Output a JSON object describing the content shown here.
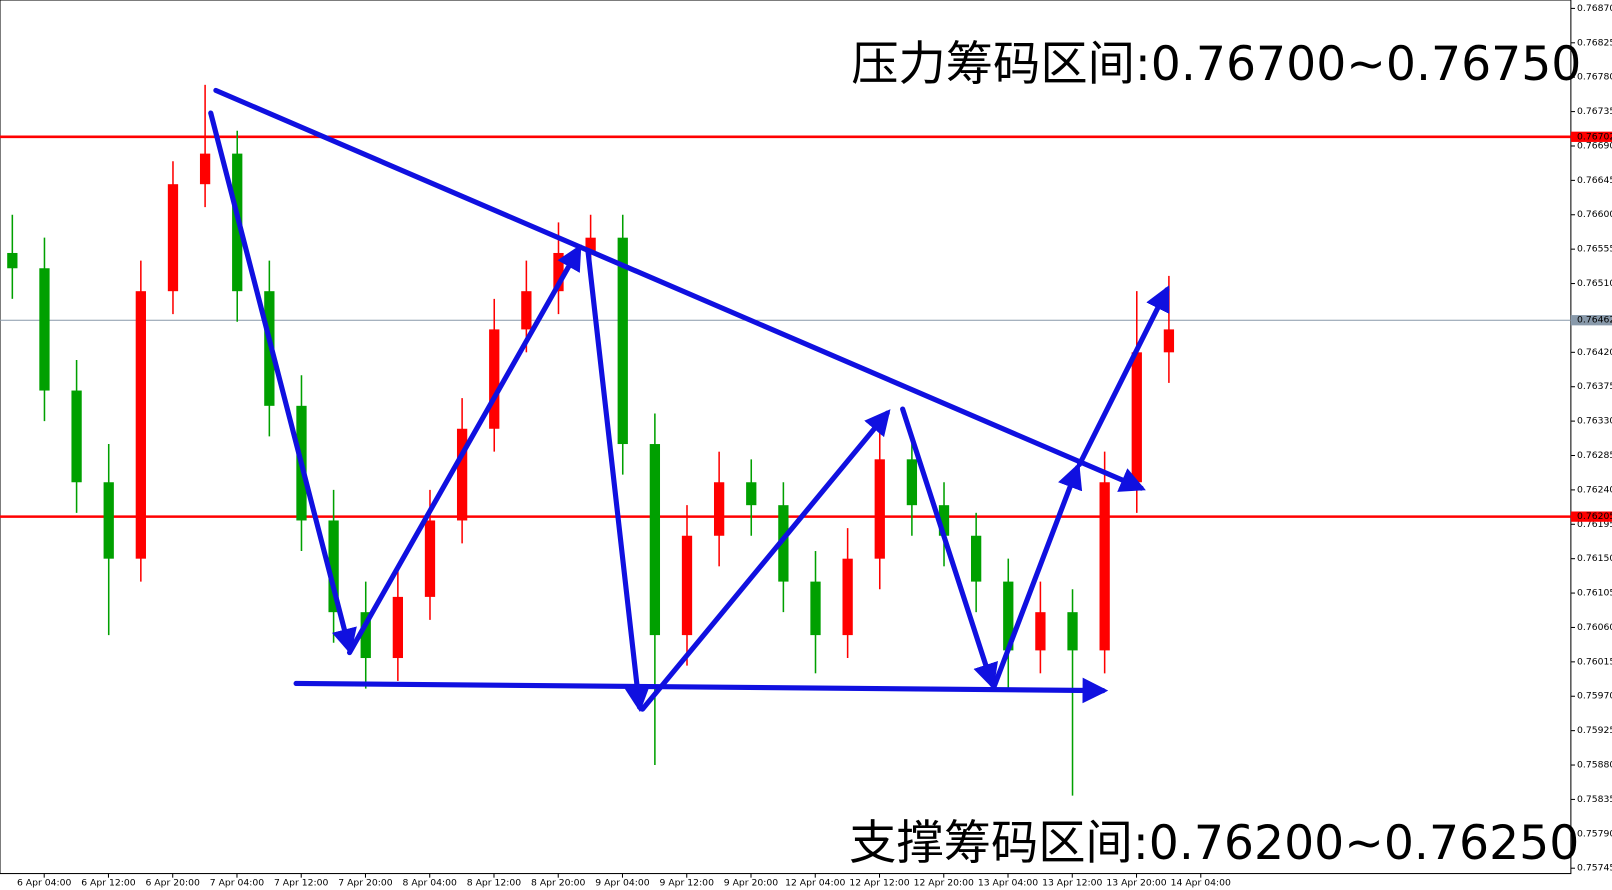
{
  "chart_data": {
    "type": "candlestick",
    "annotations": [
      "压力筹码区间:0.76700~0.76750",
      "支撑筹码区间:0.76200~0.76250"
    ],
    "xticks": [
      "6 Apr 04:00",
      "6 Apr 12:00",
      "6 Apr 20:00",
      "7 Apr 04:00",
      "7 Apr 12:00",
      "7 Apr 20:00",
      "8 Apr 04:00",
      "8 Apr 12:00",
      "8 Apr 20:00",
      "9 Apr 04:00",
      "9 Apr 12:00",
      "9 Apr 20:00",
      "12 Apr 04:00",
      "12 Apr 12:00",
      "12 Apr 20:00",
      "13 Apr 04:00",
      "13 Apr 12:00",
      "13 Apr 20:00",
      "14 Apr 04:00"
    ],
    "open": [
      0.7655,
      0.7653,
      0.7637,
      0.7625,
      0.7615,
      0.765,
      0.7664,
      0.7668,
      0.765,
      0.7635,
      0.762,
      0.7608,
      0.7602,
      0.761,
      0.762,
      0.7632,
      0.7645,
      0.765,
      0.7655,
      0.7657,
      0.763,
      0.7605,
      0.7618,
      0.7625,
      0.7622,
      0.7612,
      0.7605,
      0.7615,
      0.7628,
      0.7622,
      0.7618,
      0.7612,
      0.7603,
      0.7608,
      0.7603,
      0.7625,
      0.7642
    ],
    "high": [
      0.766,
      0.7657,
      0.7641,
      0.763,
      0.7654,
      0.7667,
      0.7677,
      0.7671,
      0.7654,
      0.7639,
      0.7624,
      0.7612,
      0.7614,
      0.7624,
      0.7636,
      0.7649,
      0.7654,
      0.7659,
      0.766,
      0.766,
      0.7634,
      0.7622,
      0.7629,
      0.7628,
      0.7625,
      0.7616,
      0.7619,
      0.7632,
      0.7631,
      0.7625,
      0.7621,
      0.7615,
      0.7612,
      0.7611,
      0.7629,
      0.765,
      0.7652
    ],
    "low": [
      0.7649,
      0.7633,
      0.7621,
      0.7605,
      0.7612,
      0.7647,
      0.7661,
      0.7646,
      0.7631,
      0.7616,
      0.7604,
      0.7598,
      0.7599,
      0.7607,
      0.7617,
      0.7629,
      0.7642,
      0.7647,
      0.7652,
      0.7626,
      0.7588,
      0.7601,
      0.7614,
      0.7618,
      0.7608,
      0.76,
      0.7602,
      0.7611,
      0.7618,
      0.7614,
      0.7608,
      0.7598,
      0.76,
      0.7584,
      0.76,
      0.7621,
      0.7638
    ],
    "close": [
      0.7653,
      0.7637,
      0.7625,
      0.7615,
      0.765,
      0.7664,
      0.7668,
      0.765,
      0.7635,
      0.762,
      0.7608,
      0.7602,
      0.761,
      0.762,
      0.7632,
      0.7645,
      0.765,
      0.7655,
      0.7657,
      0.763,
      0.7605,
      0.7618,
      0.7625,
      0.7622,
      0.7612,
      0.7605,
      0.7615,
      0.7628,
      0.7622,
      0.7618,
      0.7612,
      0.7603,
      0.7608,
      0.7603,
      0.7625,
      0.7642,
      0.7645
    ],
    "up_color": "#ff0000",
    "down_color": "#00a000",
    "ylim": [
      0.75738,
      0.76881
    ],
    "yticks": [
      {
        "value": 0.7687,
        "label": "0.76870"
      },
      {
        "value": 0.76825,
        "label": "0.76825"
      },
      {
        "value": 0.7678,
        "label": "0.76780"
      },
      {
        "value": 0.76735,
        "label": "0.76735"
      },
      {
        "value": 0.7669,
        "label": "0.76690"
      },
      {
        "value": 0.76645,
        "label": "0.76645"
      },
      {
        "value": 0.766,
        "label": "0.76600"
      },
      {
        "value": 0.76555,
        "label": "0.76555"
      },
      {
        "value": 0.7651,
        "label": "0.76510"
      },
      {
        "value": 0.7642,
        "label": "0.76420"
      },
      {
        "value": 0.76375,
        "label": "0.76375"
      },
      {
        "value": 0.7633,
        "label": "0.76330"
      },
      {
        "value": 0.76285,
        "label": "0.76285"
      },
      {
        "value": 0.7624,
        "label": "0.76240"
      },
      {
        "value": 0.76195,
        "label": "0.76195"
      },
      {
        "value": 0.7615,
        "label": "0.76150"
      },
      {
        "value": 0.76105,
        "label": "0.76105"
      },
      {
        "value": 0.7606,
        "label": "0.76060"
      },
      {
        "value": 0.76015,
        "label": "0.76015"
      },
      {
        "value": 0.7597,
        "label": "0.75970"
      },
      {
        "value": 0.75925,
        "label": "0.75925"
      },
      {
        "value": 0.7588,
        "label": "0.75880"
      },
      {
        "value": 0.75835,
        "label": "0.75835"
      },
      {
        "value": 0.7579,
        "label": "0.75790"
      },
      {
        "value": 0.75745,
        "label": "0.75745"
      }
    ],
    "hlines": [
      {
        "value": 0.76702,
        "color": "#ff0000"
      },
      {
        "value": 0.76205,
        "color": "#ff0000"
      },
      {
        "value": 0.76462,
        "color": "#8899aa"
      }
    ]
  }
}
